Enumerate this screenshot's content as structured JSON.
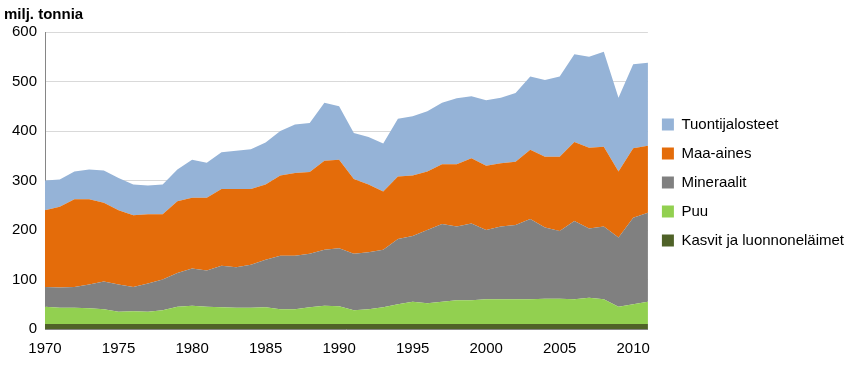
{
  "chart_data": {
    "type": "area",
    "ylabel": "milj. tonnia",
    "x": [
      1970,
      1971,
      1972,
      1973,
      1974,
      1975,
      1976,
      1977,
      1978,
      1979,
      1980,
      1981,
      1982,
      1983,
      1984,
      1985,
      1986,
      1987,
      1988,
      1989,
      1990,
      1991,
      1992,
      1993,
      1994,
      1995,
      1996,
      1997,
      1998,
      1999,
      2000,
      2001,
      2002,
      2003,
      2004,
      2005,
      2006,
      2007,
      2008,
      2009,
      2010,
      2011
    ],
    "series": [
      {
        "name": "Kasvit ja luonnoneläimet",
        "color": "#4f6228",
        "values": [
          10,
          10,
          10,
          10,
          10,
          10,
          10,
          10,
          10,
          10,
          10,
          10,
          10,
          10,
          10,
          10,
          10,
          10,
          10,
          10,
          10,
          10,
          10,
          10,
          10,
          10,
          10,
          10,
          10,
          10,
          10,
          10,
          10,
          10,
          10,
          10,
          10,
          10,
          10,
          10,
          10,
          10
        ]
      },
      {
        "name": "Puu",
        "color": "#92d050",
        "values": [
          35,
          33,
          33,
          32,
          30,
          25,
          26,
          25,
          28,
          35,
          37,
          35,
          34,
          33,
          33,
          34,
          30,
          30,
          34,
          37,
          36,
          28,
          30,
          34,
          40,
          45,
          42,
          45,
          48,
          48,
          50,
          50,
          50,
          50,
          51,
          51,
          50,
          53,
          50,
          35,
          40,
          45
        ]
      },
      {
        "name": "Mineraalit",
        "color": "#808080",
        "values": [
          40,
          41,
          42,
          48,
          56,
          55,
          49,
          57,
          62,
          68,
          75,
          73,
          84,
          82,
          87,
          96,
          108,
          108,
          108,
          113,
          117,
          114,
          115,
          116,
          132,
          133,
          148,
          157,
          149,
          155,
          140,
          147,
          150,
          162,
          144,
          137,
          158,
          140,
          147,
          140,
          175,
          180
        ]
      },
      {
        "name": "Maa-aines",
        "color": "#e46c0a",
        "values": [
          155,
          163,
          177,
          172,
          159,
          150,
          145,
          140,
          132,
          145,
          143,
          147,
          155,
          158,
          153,
          152,
          162,
          167,
          165,
          180,
          179,
          151,
          137,
          118,
          126,
          122,
          118,
          121,
          126,
          132,
          130,
          128,
          128,
          140,
          143,
          150,
          160,
          163,
          161,
          133,
          140,
          135
        ]
      },
      {
        "name": "Tuontijalosteet",
        "color": "#95b3d7",
        "values": [
          60,
          55,
          56,
          60,
          65,
          65,
          62,
          58,
          60,
          64,
          77,
          71,
          74,
          77,
          80,
          85,
          90,
          98,
          99,
          117,
          108,
          93,
          96,
          97,
          117,
          120,
          122,
          124,
          133,
          125,
          132,
          132,
          139,
          148,
          155,
          162,
          177,
          184,
          192,
          149,
          170,
          168
        ]
      }
    ],
    "xlim": [
      1970,
      2011
    ],
    "xticks": [
      1970,
      1975,
      1980,
      1985,
      1990,
      1995,
      2000,
      2005,
      2010
    ],
    "ylim": [
      0,
      600
    ],
    "yticks": [
      0,
      100,
      200,
      300,
      400,
      500,
      600
    ],
    "stacked": true,
    "grid": true,
    "legend": "right"
  }
}
